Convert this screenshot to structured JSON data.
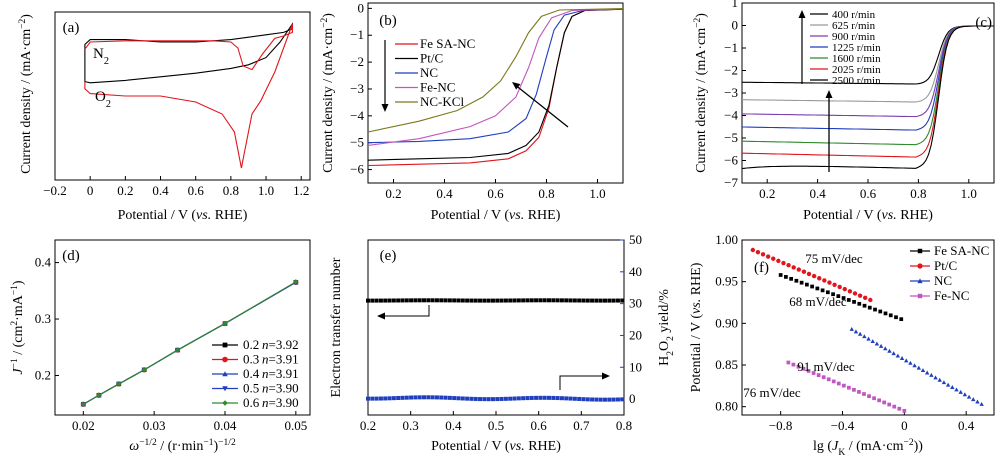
{
  "chart_data": [
    {
      "panel": "(a)",
      "type": "line",
      "xlabel": "Potential / V (vs. RHE)",
      "ylabel": "Current density / (mA·cm⁻²)",
      "xlim": [
        -0.2,
        1.25
      ],
      "xticks": [
        "−0.2",
        "0",
        "0.2",
        "0.4",
        "0.6",
        "0.8",
        "1.0",
        "1.2"
      ],
      "xtick_values": [
        -0.2,
        0,
        0.2,
        0.4,
        0.6,
        0.8,
        1.0,
        1.2
      ],
      "annotations": [
        {
          "text": "N",
          "sub": "2",
          "color": "#000000"
        },
        {
          "text": "O",
          "sub": "2",
          "color": "#e0161c"
        }
      ],
      "series": [
        {
          "color": "#000000",
          "points": [
            [
              -0.03,
              10
            ],
            [
              -0.03,
              8.2
            ],
            [
              0.0,
              8.1
            ],
            [
              0.2,
              8.3
            ],
            [
              0.4,
              8.6
            ],
            [
              0.6,
              8.9
            ],
            [
              0.8,
              9.3
            ],
            [
              0.9,
              9.6
            ],
            [
              1.0,
              10.2
            ],
            [
              1.08,
              11.5
            ],
            [
              1.15,
              13.0
            ],
            [
              1.15,
              12.6
            ],
            [
              1.1,
              12.3
            ],
            [
              1.0,
              12.1
            ],
            [
              0.8,
              11.7
            ],
            [
              0.6,
              11.5
            ],
            [
              0.4,
              11.5
            ],
            [
              0.2,
              11.7
            ],
            [
              0.0,
              11.7
            ],
            [
              -0.03,
              11.3
            ],
            [
              -0.03,
              10
            ]
          ]
        },
        {
          "color": "#e0161c",
          "points": [
            [
              -0.03,
              8.2
            ],
            [
              -0.03,
              7.6
            ],
            [
              0.0,
              7.2
            ],
            [
              0.2,
              7.0
            ],
            [
              0.4,
              7.0
            ],
            [
              0.6,
              6.5
            ],
            [
              0.75,
              5.5
            ],
            [
              0.82,
              4.0
            ],
            [
              0.86,
              1.0
            ],
            [
              0.88,
              2.5
            ],
            [
              0.92,
              5.5
            ],
            [
              0.97,
              6.6
            ],
            [
              1.0,
              7.5
            ],
            [
              1.05,
              9.0
            ],
            [
              1.1,
              11.0
            ],
            [
              1.15,
              13.0
            ],
            [
              1.15,
              12.3
            ],
            [
              1.1,
              12.0
            ],
            [
              1.05,
              11.8
            ],
            [
              0.98,
              10.5
            ],
            [
              0.92,
              9.2
            ],
            [
              0.87,
              9.5
            ],
            [
              0.84,
              11.0
            ],
            [
              0.8,
              11.5
            ],
            [
              0.7,
              11.6
            ],
            [
              0.5,
              11.6
            ],
            [
              0.2,
              11.6
            ],
            [
              0.0,
              11.5
            ],
            [
              -0.03,
              10.9
            ]
          ]
        }
      ]
    },
    {
      "panel": "(b)",
      "type": "line",
      "xlabel": "Potential / V (vs. RHE)",
      "ylabel": "Current density / (mA·cm⁻²)",
      "xlim": [
        0.1,
        1.1
      ],
      "ylim": [
        -6.5,
        0.2
      ],
      "xticks": [
        "0.2",
        "0.4",
        "0.6",
        "0.8",
        "1.0"
      ],
      "xtick_values": [
        0.2,
        0.4,
        0.6,
        0.8,
        1.0
      ],
      "yticks": [
        "−6",
        "−5",
        "−4",
        "−3",
        "−2",
        "−1",
        "0"
      ],
      "ytick_values": [
        -6,
        -5,
        -4,
        -3,
        -2,
        -1,
        0
      ],
      "series": [
        {
          "name": "Fe SA-NC",
          "color": "#e0161c",
          "points": [
            [
              0.1,
              -5.85
            ],
            [
              0.3,
              -5.8
            ],
            [
              0.5,
              -5.75
            ],
            [
              0.65,
              -5.6
            ],
            [
              0.72,
              -5.3
            ],
            [
              0.77,
              -4.8
            ],
            [
              0.81,
              -3.7
            ],
            [
              0.84,
              -2.2
            ],
            [
              0.87,
              -0.9
            ],
            [
              0.9,
              -0.3
            ],
            [
              0.95,
              -0.08
            ],
            [
              1.1,
              -0.03
            ]
          ]
        },
        {
          "name": "Pt/C",
          "color": "#000000",
          "points": [
            [
              0.1,
              -5.65
            ],
            [
              0.3,
              -5.6
            ],
            [
              0.5,
              -5.55
            ],
            [
              0.65,
              -5.4
            ],
            [
              0.72,
              -5.1
            ],
            [
              0.77,
              -4.6
            ],
            [
              0.81,
              -3.6
            ],
            [
              0.84,
              -2.2
            ],
            [
              0.87,
              -0.9
            ],
            [
              0.9,
              -0.3
            ],
            [
              0.95,
              -0.08
            ],
            [
              1.1,
              -0.03
            ]
          ]
        },
        {
          "name": "NC",
          "color": "#1f3fbf",
          "points": [
            [
              0.1,
              -5.0
            ],
            [
              0.3,
              -4.95
            ],
            [
              0.5,
              -4.85
            ],
            [
              0.65,
              -4.6
            ],
            [
              0.72,
              -4.1
            ],
            [
              0.76,
              -3.2
            ],
            [
              0.8,
              -1.8
            ],
            [
              0.83,
              -0.8
            ],
            [
              0.87,
              -0.25
            ],
            [
              0.95,
              -0.06
            ],
            [
              1.1,
              -0.02
            ]
          ]
        },
        {
          "name": "Fe-NC",
          "color": "#c157c0",
          "points": [
            [
              0.1,
              -5.1
            ],
            [
              0.3,
              -4.85
            ],
            [
              0.5,
              -4.4
            ],
            [
              0.6,
              -4.0
            ],
            [
              0.68,
              -3.3
            ],
            [
              0.73,
              -2.2
            ],
            [
              0.77,
              -1.1
            ],
            [
              0.82,
              -0.35
            ],
            [
              0.9,
              -0.08
            ],
            [
              1.1,
              -0.02
            ]
          ]
        },
        {
          "name": "NC-KCl",
          "color": "#7a7a1a",
          "points": [
            [
              0.1,
              -4.6
            ],
            [
              0.3,
              -4.2
            ],
            [
              0.45,
              -3.8
            ],
            [
              0.55,
              -3.3
            ],
            [
              0.62,
              -2.7
            ],
            [
              0.68,
              -1.8
            ],
            [
              0.73,
              -0.9
            ],
            [
              0.78,
              -0.3
            ],
            [
              0.85,
              -0.06
            ],
            [
              1.1,
              -0.01
            ]
          ]
        }
      ]
    },
    {
      "panel": "(c)",
      "type": "line",
      "xlabel": "Potential / V (vs. RHE)",
      "ylabel": "Current density / (mA·cm⁻²)",
      "xlim": [
        0.1,
        1.1
      ],
      "ylim": [
        -7,
        1
      ],
      "xticks": [
        "0.2",
        "0.4",
        "0.6",
        "0.8",
        "1.0"
      ],
      "xtick_values": [
        0.2,
        0.4,
        0.6,
        0.8,
        1.0
      ],
      "yticks": [
        "−7",
        "−6",
        "−5",
        "−4",
        "−3",
        "−2",
        "−1",
        "0",
        "1"
      ],
      "ytick_values": [
        -7,
        -6,
        -5,
        -4,
        -3,
        -2,
        -1,
        0,
        1
      ],
      "series": [
        {
          "name": "400 r/min",
          "color": "#000000",
          "limit": -2.6
        },
        {
          "name": "625 r/min",
          "color": "#9a9a9a",
          "limit": -3.4
        },
        {
          "name": "900 r/min",
          "color": "#7a3fb0",
          "limit": -4.05
        },
        {
          "name": "1225 r/min",
          "color": "#1f3fbf",
          "limit": -4.65
        },
        {
          "name": "1600 r/min",
          "color": "#2e8b2e",
          "limit": -5.3
        },
        {
          "name": "2025 r/min",
          "color": "#e0161c",
          "limit": -5.85
        },
        {
          "name": "2500 r/min",
          "color": "#000000",
          "limit": -6.35
        }
      ]
    },
    {
      "panel": "(d)",
      "type": "line",
      "xlabel": "ω−1/2 / (r·min−1)−1/2",
      "ylabel": "J−1 / (cm²·mA−1)",
      "xlim": [
        0.016,
        0.052
      ],
      "ylim": [
        0.13,
        0.44
      ],
      "xticks": [
        "0.02",
        "0.03",
        "0.04",
        "0.05"
      ],
      "xtick_values": [
        0.02,
        0.03,
        0.04,
        0.05
      ],
      "yticks": [
        "0.2",
        "0.3",
        "0.4"
      ],
      "ytick_values": [
        0.2,
        0.3,
        0.4
      ],
      "x": [
        0.02,
        0.0222,
        0.025,
        0.0286,
        0.0333,
        0.04,
        0.05
      ],
      "series": [
        {
          "name": "0.2",
          "n": "3.92",
          "color": "#000000",
          "marker": "square",
          "values": [
            0.149,
            0.165,
            0.185,
            0.21,
            0.245,
            0.292,
            0.365
          ]
        },
        {
          "name": "0.3",
          "n": "3.91",
          "color": "#e0161c",
          "marker": "circle",
          "values": [
            0.149,
            0.165,
            0.185,
            0.21,
            0.245,
            0.292,
            0.365
          ]
        },
        {
          "name": "0.4",
          "n": "3.91",
          "color": "#1f3fbf",
          "marker": "triangle",
          "values": [
            0.149,
            0.165,
            0.185,
            0.21,
            0.245,
            0.292,
            0.365
          ]
        },
        {
          "name": "0.5",
          "n": "3.90",
          "color": "#1f3fbf",
          "marker": "triangle-down",
          "values": [
            0.149,
            0.165,
            0.185,
            0.21,
            0.245,
            0.292,
            0.365
          ]
        },
        {
          "name": "0.6",
          "n": "3.90",
          "color": "#2e8b2e",
          "marker": "diamond",
          "values": [
            0.149,
            0.165,
            0.185,
            0.21,
            0.245,
            0.292,
            0.366
          ]
        }
      ]
    },
    {
      "panel": "(e)",
      "type": "scatter",
      "xlabel": "Potential / V (vs. RHE)",
      "ylabel": "Electron transfer number",
      "ylabel_right": "H₂O₂ yield/%",
      "right_color": "#1f3fbf",
      "xlim": [
        0.2,
        0.8
      ],
      "ylim_right": [
        -5,
        50
      ],
      "xticks": [
        "0.2",
        "0.3",
        "0.4",
        "0.5",
        "0.6",
        "0.7",
        "0.8"
      ],
      "xtick_values": [
        0.2,
        0.3,
        0.4,
        0.5,
        0.6,
        0.7,
        0.8
      ],
      "yticks_right": [
        "0",
        "10",
        "20",
        "30",
        "40",
        "50"
      ],
      "ytick_right_values": [
        0,
        10,
        20,
        30,
        40,
        50
      ],
      "series": [
        {
          "name": "Electron transfer number",
          "color": "#000000",
          "axis": "left",
          "y_right_equiv": 31.0
        },
        {
          "name": "H₂O₂ yield",
          "color": "#1f3fbf",
          "axis": "right",
          "y_right_equiv": 0.4
        }
      ]
    },
    {
      "panel": "(f)",
      "type": "scatter",
      "xlabel": "lg (JK / (mA·cm−2))",
      "ylabel": "Potential / V (vs. RHE)",
      "xlim": [
        -1.05,
        0.58
      ],
      "ylim": [
        0.79,
        1.0
      ],
      "xticks": [
        "−0.8",
        "−0.4",
        "0",
        "0.4"
      ],
      "xtick_values": [
        -0.8,
        -0.4,
        0,
        0.4
      ],
      "yticks": [
        "0.80",
        "0.85",
        "0.90",
        "0.95",
        "1.00"
      ],
      "ytick_values": [
        0.8,
        0.85,
        0.9,
        0.95,
        1.0
      ],
      "annotations": [
        {
          "text": "75 mV/dec",
          "color": "#e0161c"
        },
        {
          "text": "68 mV/dec",
          "color": "#000000"
        },
        {
          "text": "91 mV/dec",
          "color": "#1f3fbf"
        },
        {
          "text": "76 mV/dec",
          "color": "#c157c0"
        }
      ],
      "series": [
        {
          "name": "Fe SA-NC",
          "color": "#000000",
          "marker": "square",
          "x_range": [
            -0.8,
            -0.02
          ],
          "y_range": [
            0.958,
            0.905
          ]
        },
        {
          "name": "Pt/C",
          "color": "#e0161c",
          "marker": "circle",
          "x_range": [
            -0.98,
            -0.22
          ],
          "y_range": [
            0.988,
            0.928
          ]
        },
        {
          "name": "NC",
          "color": "#1f3fbf",
          "marker": "triangle",
          "x_range": [
            -0.34,
            0.5
          ],
          "y_range": [
            0.893,
            0.803
          ]
        },
        {
          "name": "Fe-NC",
          "color": "#c157c0",
          "marker": "square",
          "x_range": [
            -0.75,
            0.0
          ],
          "y_range": [
            0.853,
            0.795
          ]
        }
      ]
    }
  ]
}
